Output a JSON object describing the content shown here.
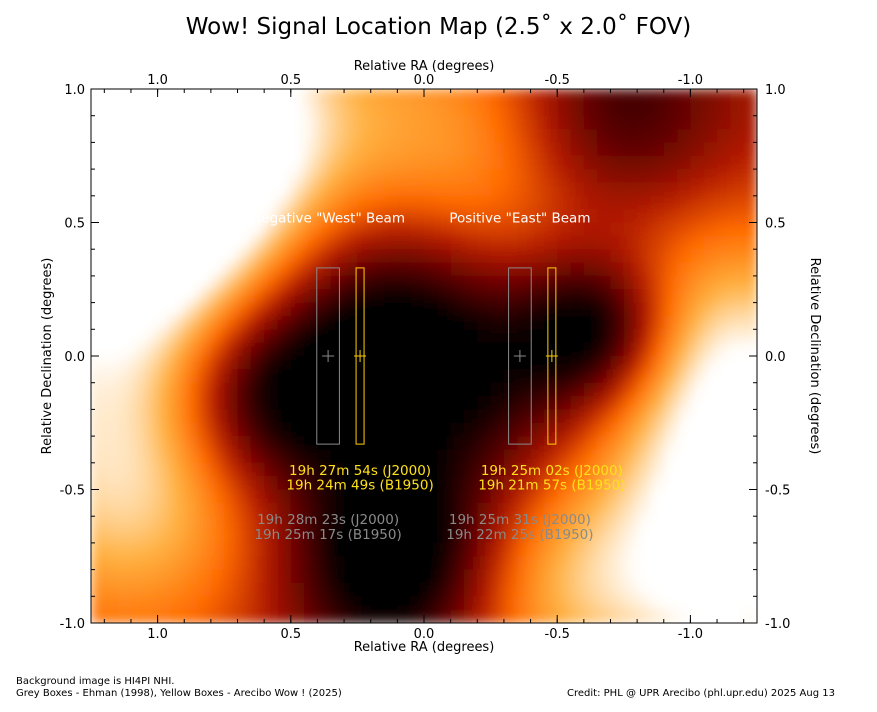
{
  "chart_data": {
    "type": "heatmap",
    "title": "Wow! Signal Location Map (2.5˚ x 2.0˚ FOV)",
    "xlabel": "Relative RA (degrees)",
    "ylabel": "Relative Declination (degrees)",
    "xlim": [
      1.25,
      -1.25
    ],
    "ylim": [
      -1.0,
      1.0
    ],
    "x_ticks": [
      {
        "value": 1.0,
        "label": "1.0"
      },
      {
        "value": 0.5,
        "label": "0.5"
      },
      {
        "value": 0.0,
        "label": "0.0"
      },
      {
        "value": -0.5,
        "label": "-0.5"
      },
      {
        "value": -1.0,
        "label": "-1.0"
      }
    ],
    "y_ticks": [
      {
        "value": 1.0,
        "label": "1.0"
      },
      {
        "value": 0.5,
        "label": "0.5"
      },
      {
        "value": 0.0,
        "label": "0.0"
      },
      {
        "value": -0.5,
        "label": "-0.5"
      },
      {
        "value": -1.0,
        "label": "-1.0"
      }
    ],
    "colormap": [
      "#000000",
      "#5a0000",
      "#b01a00",
      "#ff6a00",
      "#ffb040",
      "#ffffff"
    ],
    "boxes": [
      {
        "group": "grey",
        "x_center": 0.36,
        "width": 0.085,
        "y_min": -0.33,
        "y_max": 0.33,
        "color": "#8a8a8a"
      },
      {
        "group": "yellow",
        "x_center": 0.24,
        "width": 0.03,
        "y_min": -0.33,
        "y_max": 0.33,
        "color": "#ffd000"
      },
      {
        "group": "grey",
        "x_center": -0.36,
        "width": 0.085,
        "y_min": -0.33,
        "y_max": 0.33,
        "color": "#8a8a8a"
      },
      {
        "group": "yellow",
        "x_center": -0.48,
        "width": 0.03,
        "y_min": -0.33,
        "y_max": 0.33,
        "color": "#ffd000"
      }
    ],
    "centers": [
      {
        "x": 0.36,
        "y": 0.0,
        "color": "#8a8a8a"
      },
      {
        "x": 0.24,
        "y": 0.0,
        "color": "#ffd000"
      },
      {
        "x": -0.36,
        "y": 0.0,
        "color": "#8a8a8a"
      },
      {
        "x": -0.48,
        "y": 0.0,
        "color": "#ffd000"
      }
    ],
    "annotations": {
      "west_beam": {
        "text": "Negative \"West\" Beam",
        "x": 0.36,
        "y": 0.5
      },
      "east_beam": {
        "text": "Positive \"East\" Beam",
        "x": -0.36,
        "y": 0.5
      },
      "west_yellow_j2000": {
        "text": "19h 27m 54s (J2000)",
        "x": 0.24,
        "y": -0.445
      },
      "west_yellow_b1950": {
        "text": "19h 24m 49s (B1950)",
        "x": 0.24,
        "y": -0.5
      },
      "east_yellow_j2000": {
        "text": "19h 25m 02s (J2000)",
        "x": -0.48,
        "y": -0.445
      },
      "east_yellow_b1950": {
        "text": "19h 21m 57s (B1950)",
        "x": -0.48,
        "y": -0.5
      },
      "west_grey_j2000": {
        "text": "19h 28m 23s (J2000)",
        "x": 0.36,
        "y": -0.63
      },
      "west_grey_b1950": {
        "text": "19h 25m 17s (B1950)",
        "x": 0.36,
        "y": -0.685
      },
      "east_grey_j2000": {
        "text": "19h 25m 31s (J2000)",
        "x": -0.36,
        "y": -0.63
      },
      "east_grey_b1950": {
        "text": "19h 22m 25s (B1950)",
        "x": -0.36,
        "y": -0.685
      }
    },
    "background": [
      {
        "x": 1.2,
        "y": 0.95,
        "v": 1.0,
        "s": 0.35
      },
      {
        "x": 1.1,
        "y": 0.4,
        "v": 0.55,
        "s": 0.45
      },
      {
        "x": 0.8,
        "y": 0.9,
        "v": 0.45,
        "s": 0.4
      },
      {
        "x": -0.2,
        "y": 0.75,
        "v": 0.35,
        "s": 0.4
      },
      {
        "x": -1.15,
        "y": -0.1,
        "v": 0.6,
        "s": 0.4
      },
      {
        "x": -1.15,
        "y": -0.85,
        "v": 0.55,
        "s": 0.35
      },
      {
        "x": 1.1,
        "y": -0.5,
        "v": 0.45,
        "s": 0.4
      },
      {
        "x": -0.45,
        "y": -0.85,
        "v": 0.35,
        "s": 0.3
      },
      {
        "x": 0.6,
        "y": -0.15,
        "v": -0.55,
        "s": 0.25
      },
      {
        "x": 0.15,
        "y": 0.15,
        "v": -0.5,
        "s": 0.3
      },
      {
        "x": -0.65,
        "y": 0.1,
        "v": -0.55,
        "s": 0.2
      },
      {
        "x": 0.1,
        "y": -0.75,
        "v": -0.6,
        "s": 0.3
      },
      {
        "x": -0.7,
        "y": 0.9,
        "v": -0.4,
        "s": 0.3
      },
      {
        "x": -0.3,
        "y": -0.1,
        "v": -0.3,
        "s": 0.3
      }
    ]
  },
  "footer": {
    "left_line1": "Background image is HI4PI NHI.",
    "left_line2": "Grey Boxes - Ehman (1998), Yellow Boxes - Arecibo Wow ! (2025)",
    "right": "Credit: PHL @ UPR Arecibo (phl.upr.edu) 2025 Aug 13"
  }
}
